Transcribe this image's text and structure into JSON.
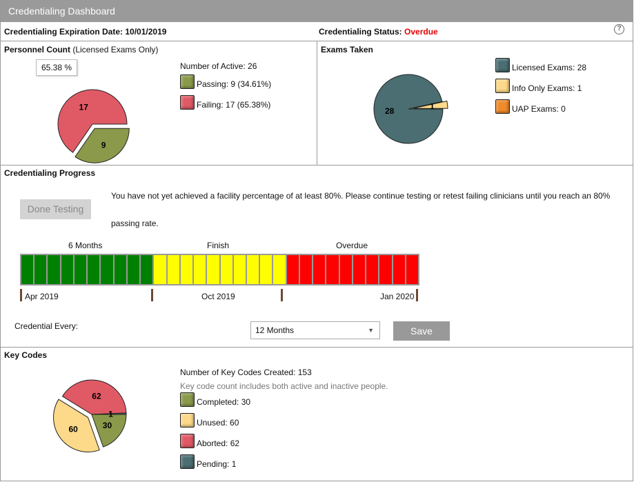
{
  "title": "Credentialing Dashboard",
  "expiration": {
    "label": "Credentialing Expiration Date:",
    "value": "10/01/2019"
  },
  "status": {
    "label": "Credentialing Status:",
    "value": "Overdue",
    "color": "#e00000"
  },
  "help_icon": "?",
  "personnel": {
    "title": "Personnel Count",
    "subtitle": "(Licensed Exams Only)",
    "tooltip": "65.38 %",
    "active": "Number of Active: 26",
    "slices": [
      {
        "label": "Passing: 9 (34.61%)",
        "value": 9,
        "text": "9",
        "color": "#8a9a4a"
      },
      {
        "label": "Failing: 17 (65.38%)",
        "value": 17,
        "text": "17",
        "color": "#e05a66"
      }
    ]
  },
  "exams": {
    "title": "Exams Taken",
    "slices": [
      {
        "label": "Licensed Exams: 28",
        "value": 28,
        "text": "28",
        "color": "#4a6e72"
      },
      {
        "label": "Info Only Exams: 1",
        "value": 1,
        "text": "1",
        "color": "#fdd98a"
      },
      {
        "label": "UAP Exams: 0",
        "value": 0,
        "text": "",
        "color": "#f08a2a"
      }
    ]
  },
  "progress": {
    "title": "Credentialing Progress",
    "done_button": "Done Testing",
    "message": "You have not yet achieved a facility percentage of at least 80%. Please continue testing or retest failing clinicians until you reach an 80%",
    "message2": "passing rate.",
    "phases": [
      {
        "label": "6 Months",
        "color": "#008000",
        "cells": 10
      },
      {
        "label": "Finish",
        "color": "#ffff00",
        "cells": 10
      },
      {
        "label": "Overdue",
        "color": "#ff0000",
        "cells": 10
      }
    ],
    "dates": [
      "Apr 2019",
      "Oct 2019",
      "Jan 2020"
    ],
    "credential_every_label": "Credential Every:",
    "credential_every_value": "12 Months",
    "save": "Save"
  },
  "keycodes": {
    "title": "Key Codes",
    "created": "Number of Key Codes Created: 153",
    "note": "Key code count includes both active and inactive people.",
    "slices": [
      {
        "label": "Completed: 30",
        "value": 30,
        "text": "30",
        "color": "#8a9a4a"
      },
      {
        "label": "Unused: 60",
        "value": 60,
        "text": "60",
        "color": "#fdd98a"
      },
      {
        "label": "Aborted: 62",
        "value": 62,
        "text": "62",
        "color": "#e05a66"
      },
      {
        "label": "Pending: 1",
        "value": 1,
        "text": "1",
        "color": "#4a6e72"
      }
    ]
  }
}
